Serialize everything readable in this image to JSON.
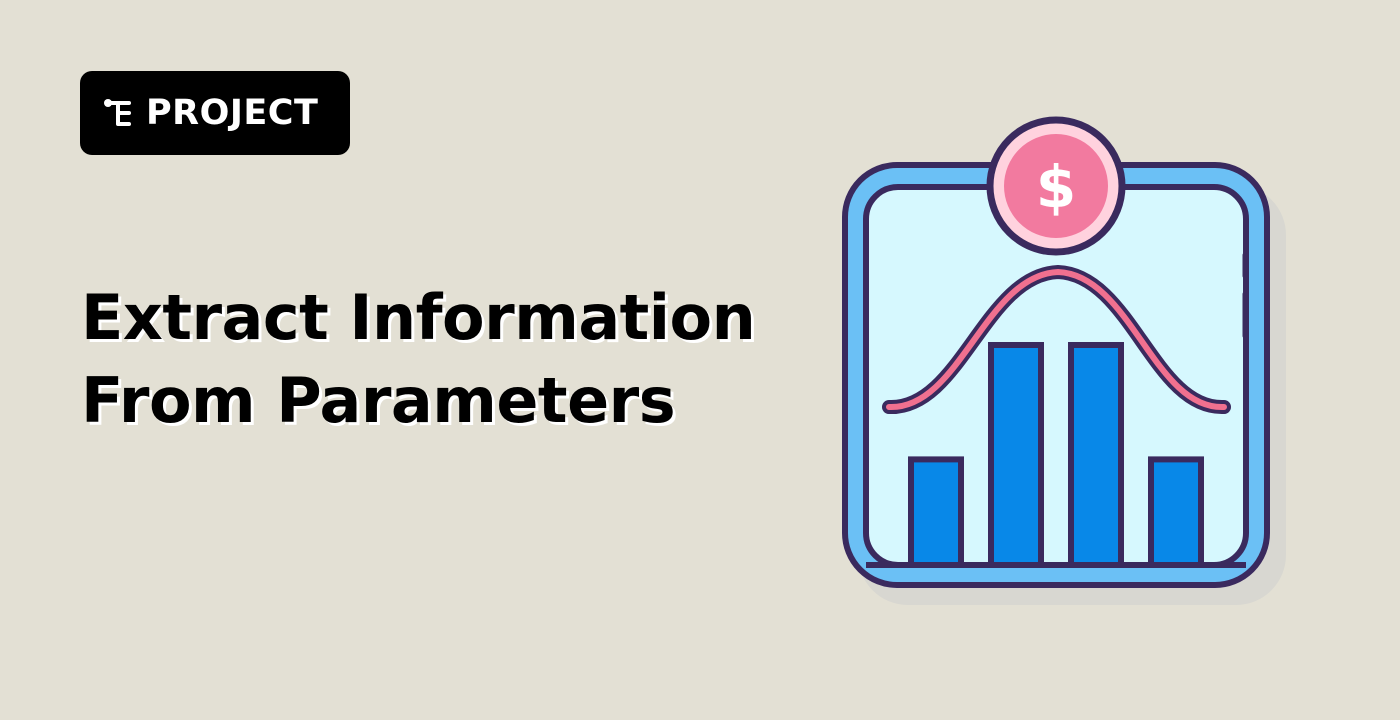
{
  "badge": {
    "icon": "project-tree-icon",
    "label": "PROJECT"
  },
  "title": {
    "line1": "Extract Information",
    "line2": "From Parameters"
  },
  "illustration": {
    "icon": "dollar-bar-chart-icon",
    "currency_symbol": "$",
    "bar_levels": [
      0.48,
      1.0,
      1.0,
      0.48
    ]
  },
  "colors": {
    "background": "#E3E0D4",
    "badge_background": "#000000",
    "badge_text": "#FFFFFF",
    "title_text": "#000000",
    "frame_outline": "#3A2A5E",
    "frame_ring": "#6BC0F5",
    "frame_fill": "#D6F8FE",
    "bars": "#0888E8",
    "curve": "#F0708F",
    "coin_fill": "#F27A9F",
    "coin_ring": "#FFD2DE",
    "shadow": "#D8D7D1"
  }
}
